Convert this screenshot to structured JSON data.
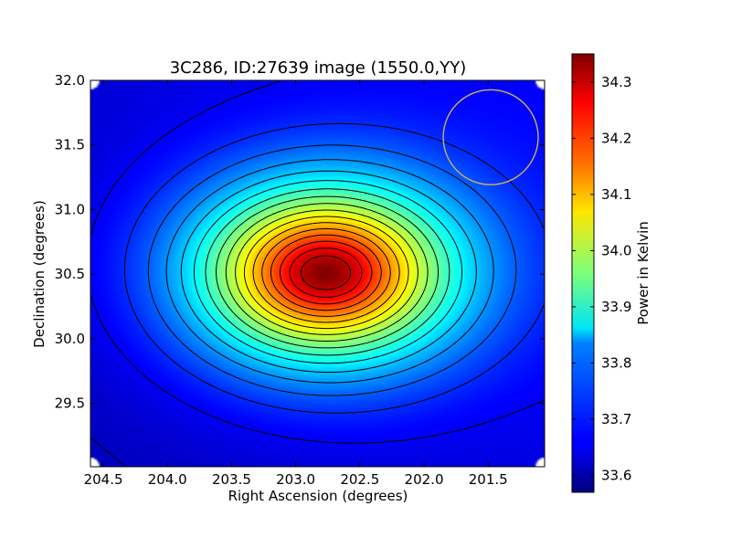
{
  "chart_data": {
    "type": "heatmap",
    "title": "3C286, ID:27639 image (1550.0,YY)",
    "xlabel": "Right Ascension (degrees)",
    "ylabel": "Declination (degrees)",
    "xlim": [
      204.6,
      201.06
    ],
    "ylim": [
      29.01,
      32.0
    ],
    "x_ticks": [
      204.5,
      204.0,
      203.5,
      203.0,
      202.5,
      202.0,
      201.5
    ],
    "x_tick_labels": [
      "204.5",
      "204.0",
      "203.5",
      "203.0",
      "202.5",
      "202.0",
      "201.5"
    ],
    "y_ticks": [
      29.5,
      30.0,
      30.5,
      31.0,
      31.5,
      32.0
    ],
    "y_tick_labels": [
      "29.5",
      "30.0",
      "30.5",
      "31.0",
      "31.5",
      "32.0"
    ],
    "colorbar": {
      "label": "Power in Kelvin",
      "range": [
        33.57,
        34.35
      ],
      "ticks": [
        33.6,
        33.7,
        33.8,
        33.9,
        34.0,
        34.1,
        34.2,
        34.3
      ],
      "tick_labels": [
        "33.6",
        "33.7",
        "33.8",
        "33.9",
        "34.0",
        "34.1",
        "34.2",
        "34.3"
      ],
      "colormap": "jet"
    },
    "peak": {
      "ra": 202.77,
      "dec": 30.51,
      "value": 34.35
    },
    "background_level": 33.64,
    "beam_circle": {
      "ra": 201.48,
      "dec": 31.56,
      "radius_deg": 0.37,
      "color": "#c9b25a"
    },
    "contour_levels": [
      33.62,
      33.66,
      33.7,
      33.74,
      33.78,
      33.82,
      33.86,
      33.9,
      33.94,
      33.98,
      34.02,
      34.06,
      34.1,
      34.14,
      34.18,
      34.22,
      34.26,
      34.3
    ]
  }
}
